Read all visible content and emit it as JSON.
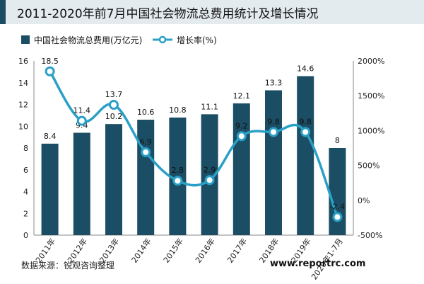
{
  "title": "2011-2020年前7月中国社会物流总费用统计及增长情况",
  "source": "数据来源：锐观咨询整理",
  "watermark": "www.reportrc.com",
  "colors": {
    "bar": "#1b4e64",
    "line": "#2aa0c6",
    "marker_fill": "#ffffff",
    "header_bg": "#e4ebef"
  },
  "chart_data": {
    "type": "bar",
    "categories": [
      "2011年",
      "2012年",
      "2013年",
      "2014年",
      "2015年",
      "2016年",
      "2017年",
      "2018年",
      "2019年",
      "2020年1-7月"
    ],
    "series": [
      {
        "name": "中国社会物流总费用(万亿元)",
        "type": "bar",
        "axis": "left",
        "values": [
          8.4,
          9.4,
          10.2,
          10.6,
          10.8,
          11.1,
          12.1,
          13.3,
          14.6,
          8
        ]
      },
      {
        "name": "增长率(%)",
        "type": "line",
        "axis": "right",
        "values": [
          18.5,
          11.4,
          13.7,
          6.9,
          2.8,
          2.9,
          9.2,
          9.8,
          9.8,
          -2.4
        ]
      }
    ],
    "y_left": {
      "min": 0,
      "max": 16,
      "ticks": [
        0,
        2,
        4,
        6,
        8,
        10,
        12,
        14,
        16
      ]
    },
    "y_right": {
      "min": -500,
      "max": 2000,
      "ticks": [
        "-500%",
        "0%",
        "500%",
        "1000%",
        "1500%",
        "2000%"
      ]
    },
    "line_data_labels": [
      "18.5",
      "11.4",
      "13.7",
      "6.9",
      "2.8",
      "2.9",
      "9.2",
      "9.8",
      "9.8",
      "-2.4"
    ],
    "bar_data_labels": [
      "8.4",
      "9.4",
      "10.2",
      "10.6",
      "10.8",
      "11.1",
      "12.1",
      "13.3",
      "14.6",
      "8"
    ],
    "legend_position": "top",
    "grid": false
  }
}
